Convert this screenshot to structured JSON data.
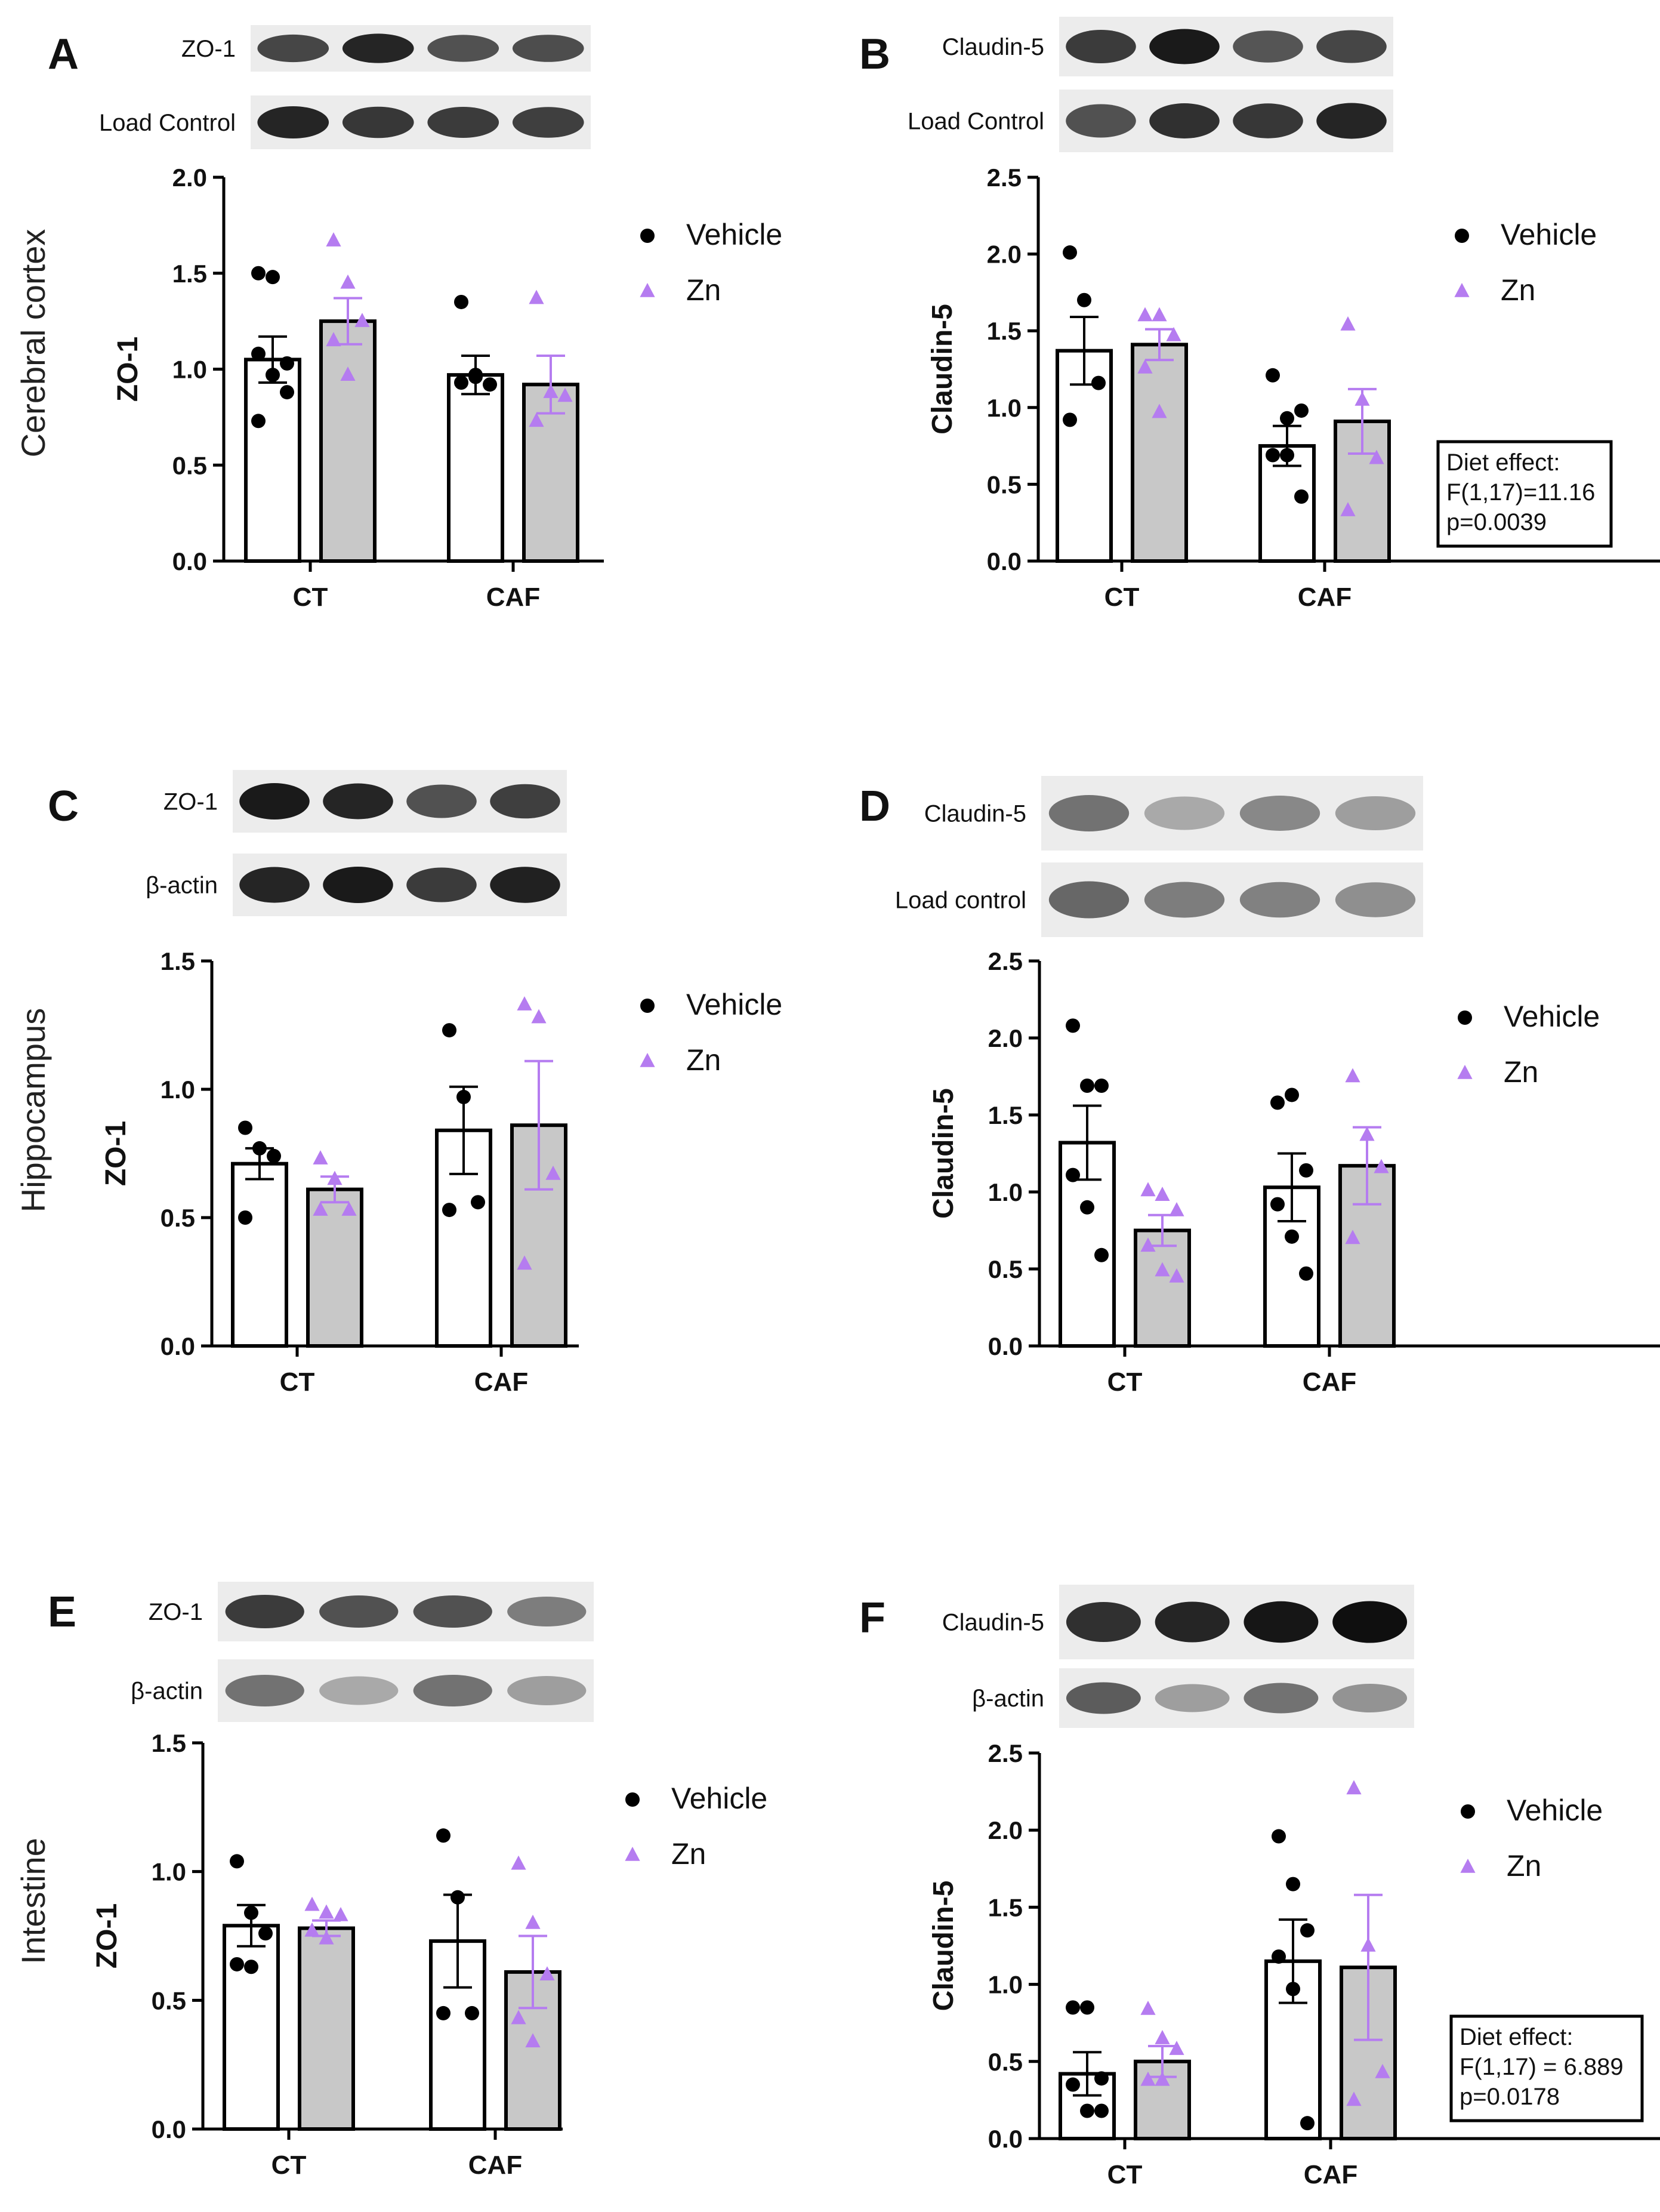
{
  "figure": {
    "row_labels": [
      "Cerebral cortex",
      "Hippocampus",
      "Intestine"
    ]
  },
  "colors": {
    "vehicle": "#000000",
    "zn": "#b57cf0",
    "zn_bar_fill": "#c8c8c8",
    "vehicle_bar_fill": "#ffffff"
  },
  "chart_data": [
    {
      "panel": "A",
      "type": "bar",
      "tissue": "Cerebral cortex",
      "blot_labels": [
        "ZO-1",
        "Load Control"
      ],
      "categories": [
        "CT",
        "CAF"
      ],
      "ylabel": "ZO-1",
      "ylim": [
        0,
        2.0
      ],
      "yticks": [
        "0.0",
        "0.5",
        "1.0",
        "1.5",
        "2.0"
      ],
      "legend": [
        "Vehicle",
        "Zn"
      ],
      "legend_position": "right",
      "series": [
        {
          "name": "Vehicle",
          "values": [
            1.05,
            0.97
          ],
          "sem": [
            0.12,
            0.1
          ],
          "points": [
            [
              1.5,
              1.48,
              1.03,
              1.08,
              0.97,
              0.88,
              0.73
            ],
            [
              1.35,
              0.96,
              0.92,
              0.93,
              0.97
            ]
          ]
        },
        {
          "name": "Zn",
          "values": [
            1.25,
            0.92
          ],
          "sem": [
            0.12,
            0.15
          ],
          "points": [
            [
              1.67,
              1.45,
              1.25,
              1.15,
              0.97
            ],
            [
              1.37,
              0.88,
              0.86,
              0.73
            ]
          ]
        }
      ]
    },
    {
      "panel": "B",
      "type": "bar",
      "tissue": "Cerebral cortex",
      "blot_labels": [
        "Claudin-5",
        "Load Control"
      ],
      "categories": [
        "CT",
        "CAF"
      ],
      "ylabel": "Claudin-5",
      "ylim": [
        0,
        2.5
      ],
      "yticks": [
        "0.0",
        "0.5",
        "1.0",
        "1.5",
        "2.0",
        "2.5"
      ],
      "legend": [
        "Vehicle",
        "Zn"
      ],
      "legend_position": "right",
      "stats": [
        "Diet effect:",
        "F(1,17)=11.16",
        "p=0.0039"
      ],
      "series": [
        {
          "name": "Vehicle",
          "values": [
            1.37,
            0.75
          ],
          "sem": [
            0.22,
            0.13
          ],
          "points": [
            [
              2.01,
              1.7,
              1.16,
              0.92
            ],
            [
              1.21,
              0.93,
              0.98,
              0.69,
              0.69,
              0.42
            ]
          ]
        },
        {
          "name": "Zn",
          "values": [
            1.41,
            0.91
          ],
          "sem": [
            0.1,
            0.21
          ],
          "points": [
            [
              1.6,
              1.6,
              1.47,
              1.26,
              0.97
            ],
            [
              1.54,
              1.05,
              0.67,
              0.33
            ]
          ]
        }
      ]
    },
    {
      "panel": "C",
      "type": "bar",
      "tissue": "Hippocampus",
      "blot_labels": [
        "ZO-1",
        "β-actin"
      ],
      "categories": [
        "CT",
        "CAF"
      ],
      "ylabel": "ZO-1",
      "ylim": [
        0,
        1.5
      ],
      "yticks": [
        "0.0",
        "0.5",
        "1.0",
        "1.5"
      ],
      "legend": [
        "Vehicle",
        "Zn"
      ],
      "legend_position": "right",
      "series": [
        {
          "name": "Vehicle",
          "values": [
            0.71,
            0.84
          ],
          "sem": [
            0.06,
            0.17
          ],
          "points": [
            [
              0.85,
              0.77,
              0.74,
              0.5
            ],
            [
              1.23,
              0.97,
              0.56,
              0.53
            ]
          ]
        },
        {
          "name": "Zn",
          "values": [
            0.61,
            0.86
          ],
          "sem": [
            0.05,
            0.25
          ],
          "points": [
            [
              0.73,
              0.65,
              0.53,
              0.53
            ],
            [
              1.33,
              1.28,
              0.67,
              0.32
            ]
          ]
        }
      ]
    },
    {
      "panel": "D",
      "type": "bar",
      "tissue": "Hippocampus",
      "blot_labels": [
        "Claudin-5",
        "Load control"
      ],
      "categories": [
        "CT",
        "CAF"
      ],
      "ylabel": "Claudin-5",
      "ylim": [
        0,
        2.5
      ],
      "yticks": [
        "0.0",
        "0.5",
        "1.0",
        "1.5",
        "2.0",
        "2.5"
      ],
      "legend": [
        "Vehicle",
        "Zn"
      ],
      "legend_position": "right",
      "series": [
        {
          "name": "Vehicle",
          "values": [
            1.32,
            1.03
          ],
          "sem": [
            0.24,
            0.22
          ],
          "points": [
            [
              2.08,
              1.69,
              1.69,
              1.11,
              0.9,
              0.59
            ],
            [
              1.58,
              1.63,
              1.14,
              0.92,
              0.71,
              0.47
            ]
          ]
        },
        {
          "name": "Zn",
          "values": [
            0.75,
            1.17
          ],
          "sem": [
            0.1,
            0.25
          ],
          "points": [
            [
              1.01,
              0.98,
              0.88,
              0.65,
              0.49,
              0.45
            ],
            [
              1.75,
              1.37,
              1.16,
              0.7
            ]
          ]
        }
      ]
    },
    {
      "panel": "E",
      "type": "bar",
      "tissue": "Intestine",
      "blot_labels": [
        "ZO-1",
        "β-actin"
      ],
      "categories": [
        "CT",
        "CAF"
      ],
      "ylabel": "ZO-1",
      "ylim": [
        0,
        1.5
      ],
      "yticks": [
        "0.0",
        "0.5",
        "1.0",
        "1.5"
      ],
      "legend": [
        "Vehicle",
        "Zn"
      ],
      "legend_position": "right",
      "series": [
        {
          "name": "Vehicle",
          "values": [
            0.79,
            0.73
          ],
          "sem": [
            0.08,
            0.18
          ],
          "points": [
            [
              1.04,
              0.84,
              0.76,
              0.64,
              0.63
            ],
            [
              1.14,
              0.9,
              0.45,
              0.45
            ]
          ]
        },
        {
          "name": "Zn",
          "values": [
            0.78,
            0.61
          ],
          "sem": [
            0.03,
            0.14
          ],
          "points": [
            [
              0.87,
              0.84,
              0.83,
              0.77,
              0.74
            ],
            [
              1.03,
              0.8,
              0.6,
              0.43,
              0.34
            ]
          ]
        }
      ]
    },
    {
      "panel": "F",
      "type": "bar",
      "tissue": "Intestine",
      "blot_labels": [
        "Claudin-5",
        "β-actin"
      ],
      "categories": [
        "CT",
        "CAF"
      ],
      "ylabel": "Claudin-5",
      "ylim": [
        0,
        2.5
      ],
      "yticks": [
        "0.0",
        "0.5",
        "1.0",
        "1.5",
        "2.0",
        "2.5"
      ],
      "legend": [
        "Vehicle",
        "Zn"
      ],
      "legend_position": "right",
      "stats": [
        "Diet effect:",
        "F(1,17) = 6.889",
        "p=0.0178"
      ],
      "series": [
        {
          "name": "Vehicle",
          "values": [
            0.42,
            1.15
          ],
          "sem": [
            0.14,
            0.27
          ],
          "points": [
            [
              0.85,
              0.85,
              0.39,
              0.35,
              0.18,
              0.18
            ],
            [
              1.96,
              1.65,
              1.35,
              1.18,
              0.97,
              0.1
            ]
          ]
        },
        {
          "name": "Zn",
          "values": [
            0.5,
            1.11
          ],
          "sem": [
            0.1,
            0.47
          ],
          "points": [
            [
              0.84,
              0.65,
              0.58,
              0.38,
              0.38
            ],
            [
              2.27,
              1.25,
              0.43,
              0.25
            ]
          ]
        }
      ]
    }
  ]
}
